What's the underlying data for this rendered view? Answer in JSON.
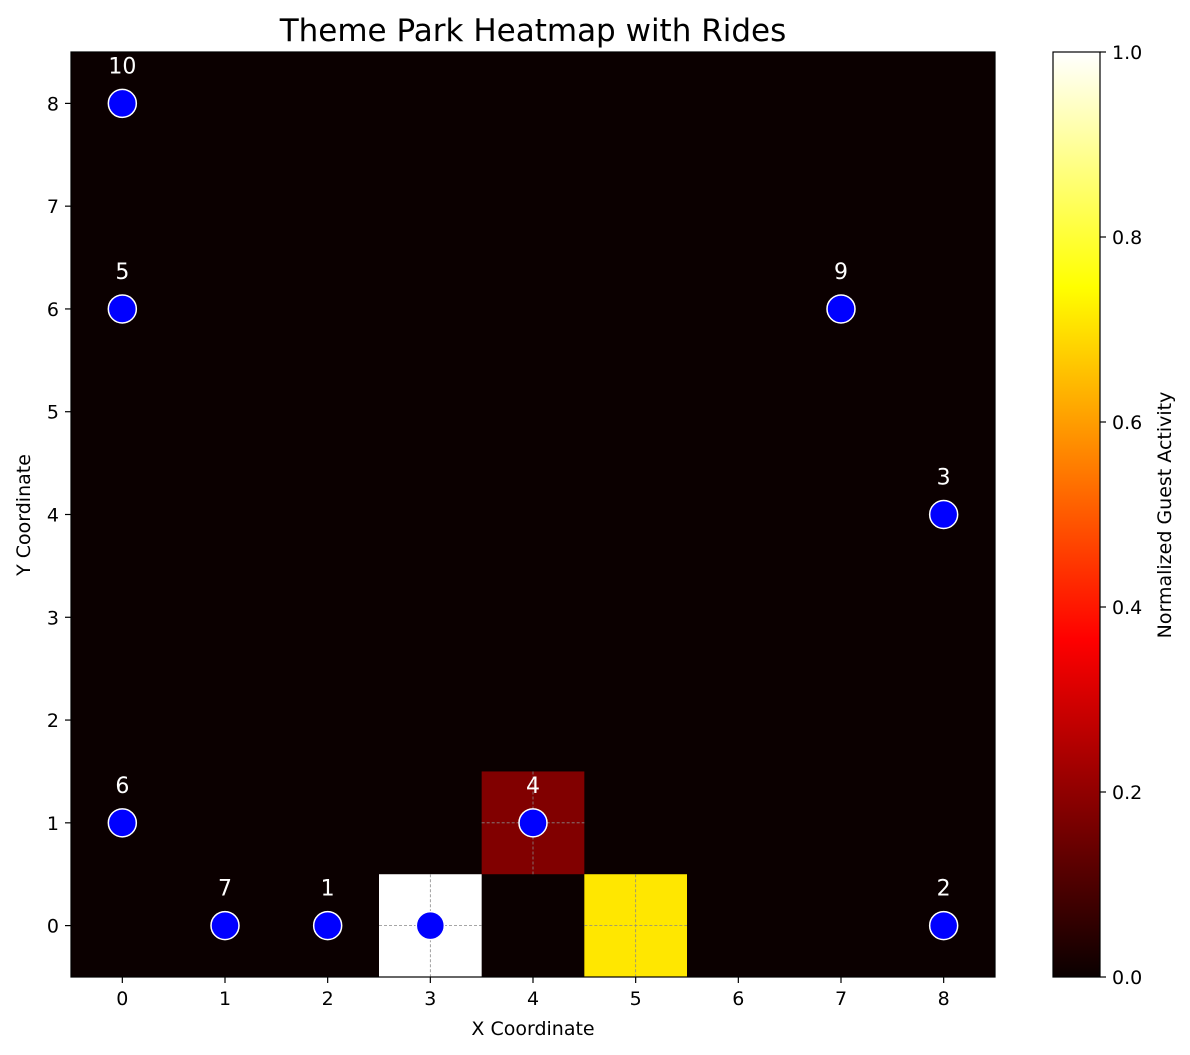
{
  "chart_data": {
    "type": "heatmap",
    "title": "Theme Park Heatmap with Rides",
    "xlabel": "X Coordinate",
    "ylabel": "Y Coordinate",
    "x_ticks": [
      0,
      1,
      2,
      3,
      4,
      5,
      6,
      7,
      8
    ],
    "y_ticks": [
      0,
      1,
      2,
      3,
      4,
      5,
      6,
      7,
      8
    ],
    "xlim": [
      -0.5,
      8.5
    ],
    "ylim": [
      -0.5,
      8.5
    ],
    "grid": false,
    "colormap": "hot",
    "background_value": 0.0,
    "cells": [
      {
        "x": 3,
        "y": 0,
        "value": 1.0
      },
      {
        "x": 5,
        "y": 0,
        "value": 0.71
      },
      {
        "x": 4,
        "y": 1,
        "value": 0.17
      }
    ],
    "cell_crosshair_color": "#888888",
    "colorbar": {
      "label": "Normalized Guest Activity",
      "min": 0.0,
      "max": 1.0,
      "ticks": [
        0.0,
        0.2,
        0.4,
        0.6,
        0.8,
        1.0
      ],
      "tick_labels": [
        "0.0",
        "0.2",
        "0.4",
        "0.6",
        "0.8",
        "1.0"
      ]
    },
    "rides": [
      {
        "label": "1",
        "x": 2,
        "y": 0
      },
      {
        "label": "2",
        "x": 8,
        "y": 0
      },
      {
        "label": "3",
        "x": 8,
        "y": 4
      },
      {
        "label": "4",
        "x": 4,
        "y": 1
      },
      {
        "label": "5",
        "x": 0,
        "y": 6
      },
      {
        "label": "6",
        "x": 0,
        "y": 1
      },
      {
        "label": "7",
        "x": 1,
        "y": 0
      },
      {
        "label": "9",
        "x": 7,
        "y": 6
      },
      {
        "label": "10",
        "x": 0,
        "y": 8
      },
      {
        "label": "",
        "x": 3,
        "y": 0
      }
    ],
    "ride_marker_color": "#0000ff",
    "ride_marker_edge": "#ffffff",
    "ride_label_color": "#ffffff"
  }
}
